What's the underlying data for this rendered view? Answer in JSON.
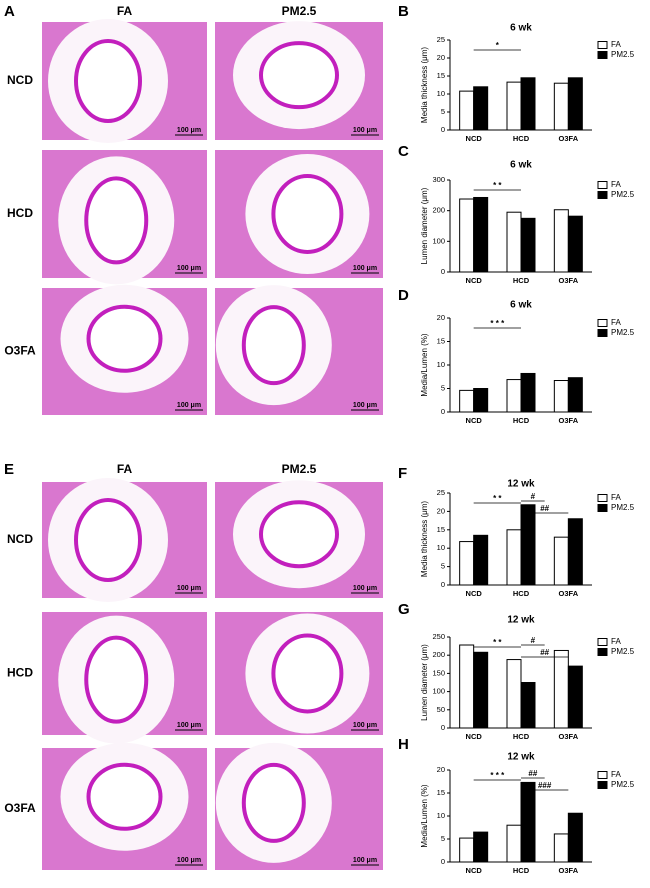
{
  "panel_A": {
    "label": "A",
    "columns": [
      "FA",
      "PM2.5"
    ],
    "rows": [
      "NCD",
      "HCD",
      "O3FA"
    ],
    "scale_bar": "100 μm"
  },
  "panel_E": {
    "label": "E",
    "columns": [
      "FA",
      "PM2.5"
    ],
    "rows": [
      "NCD",
      "HCD",
      "O3FA"
    ],
    "scale_bar": "100 μm"
  },
  "chart_data": [
    {
      "type": "bar",
      "panel_label": "B",
      "title": "6 wk",
      "y_label": "Media thickness (μm)",
      "categories": [
        "NCD",
        "HCD",
        "O3FA"
      ],
      "series": [
        {
          "name": "FA",
          "color": "#ffffff",
          "values": [
            10.8,
            13.3,
            13
          ]
        },
        {
          "name": "PM2.5",
          "color": "#000000",
          "values": [
            12,
            14.5,
            14.5
          ]
        }
      ],
      "ylim": [
        0,
        25
      ],
      "yticks": [
        0,
        5,
        10,
        15,
        20,
        25
      ],
      "annotations": [
        "*"
      ]
    },
    {
      "type": "bar",
      "panel_label": "C",
      "title": "6 wk",
      "y_label": "Lumen diameter (μm)",
      "categories": [
        "NCD",
        "HCD",
        "O3FA"
      ],
      "series": [
        {
          "name": "FA",
          "color": "#ffffff",
          "values": [
            238,
            195,
            203
          ]
        },
        {
          "name": "PM2.5",
          "color": "#000000",
          "values": [
            243,
            175,
            182
          ]
        }
      ],
      "ylim": [
        0,
        300
      ],
      "yticks": [
        0,
        100,
        200,
        300
      ],
      "annotations": [
        "* *"
      ]
    },
    {
      "type": "bar",
      "panel_label": "D",
      "title": "6 wk",
      "y_label": "Media/Lumen (%)",
      "categories": [
        "NCD",
        "HCD",
        "O3FA"
      ],
      "series": [
        {
          "name": "FA",
          "color": "#ffffff",
          "values": [
            4.6,
            6.9,
            6.7
          ]
        },
        {
          "name": "PM2.5",
          "color": "#000000",
          "values": [
            5,
            8.2,
            7.3
          ]
        }
      ],
      "ylim": [
        0,
        20
      ],
      "yticks": [
        0,
        5,
        10,
        15,
        20
      ],
      "annotations": [
        "* * *"
      ]
    },
    {
      "type": "bar",
      "panel_label": "F",
      "title": "12 wk",
      "y_label": "Media thickness (μm)",
      "categories": [
        "NCD",
        "HCD",
        "O3FA"
      ],
      "series": [
        {
          "name": "FA",
          "color": "#ffffff",
          "values": [
            11.8,
            15,
            13
          ]
        },
        {
          "name": "PM2.5",
          "color": "#000000",
          "values": [
            13.5,
            21.8,
            18
          ]
        }
      ],
      "ylim": [
        0,
        25
      ],
      "yticks": [
        0,
        5,
        10,
        15,
        20,
        25
      ],
      "annotations": [
        "* *",
        "#",
        "##"
      ]
    },
    {
      "type": "bar",
      "panel_label": "G",
      "title": "12 wk",
      "y_label": "Lumen diameter (μm)",
      "categories": [
        "NCD",
        "HCD",
        "O3FA"
      ],
      "series": [
        {
          "name": "FA",
          "color": "#ffffff",
          "values": [
            228,
            188,
            213
          ]
        },
        {
          "name": "PM2.5",
          "color": "#000000",
          "values": [
            208,
            125,
            170
          ]
        }
      ],
      "ylim": [
        0,
        250
      ],
      "yticks": [
        0,
        50,
        100,
        150,
        200,
        250
      ],
      "annotations": [
        "* *",
        "#",
        "##"
      ]
    },
    {
      "type": "bar",
      "panel_label": "H",
      "title": "12 wk",
      "y_label": "Media/Lumen (%)",
      "categories": [
        "NCD",
        "HCD",
        "O3FA"
      ],
      "series": [
        {
          "name": "FA",
          "color": "#ffffff",
          "values": [
            5.2,
            8,
            6.1
          ]
        },
        {
          "name": "PM2.5",
          "color": "#000000",
          "values": [
            6.5,
            17.3,
            10.6
          ]
        }
      ],
      "ylim": [
        0,
        20
      ],
      "yticks": [
        0,
        5,
        10,
        15,
        20
      ],
      "annotations": [
        "* * *",
        "##",
        "###"
      ]
    }
  ]
}
